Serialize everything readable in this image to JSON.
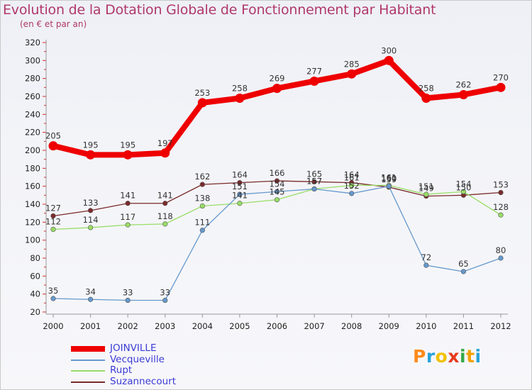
{
  "title": "Evolution de la Dotation Globale de Fonctionnement par Habitant",
  "subtitle": "(en € et par an)",
  "chart_data": {
    "type": "line",
    "title": "Evolution de la Dotation Globale de Fonctionnement par Habitant",
    "subtitle": "(en € et par an)",
    "xlabel": "",
    "ylabel": "",
    "ylim": [
      20,
      320
    ],
    "ytick_step": 20,
    "grid": false,
    "legend_position": "bottom-left",
    "categories": [
      "2000",
      "2001",
      "2002",
      "2003",
      "2004",
      "2005",
      "2006",
      "2007",
      "2008",
      "2009",
      "2010",
      "2011",
      "2012"
    ],
    "series": [
      {
        "name": "JOINVILLE",
        "color": "#ee0000",
        "values": [
          205,
          195,
          195,
          197,
          253,
          258,
          269,
          277,
          285,
          300,
          258,
          262,
          270
        ]
      },
      {
        "name": "Vecqueville",
        "color": "#6699cc",
        "values": [
          35,
          34,
          33,
          33,
          111,
          151,
          154,
          157,
          152,
          160,
          72,
          65,
          80
        ]
      },
      {
        "name": "Rupt",
        "color": "#99dd66",
        "values": [
          112,
          114,
          117,
          118,
          138,
          141,
          145,
          157,
          161,
          161,
          151,
          154,
          128
        ]
      },
      {
        "name": "Suzannecourt",
        "color": "#7a2a2a",
        "values": [
          127,
          133,
          141,
          141,
          162,
          164,
          166,
          165,
          164,
          159,
          149,
          150,
          153
        ]
      }
    ]
  },
  "logo": {
    "letters": [
      "P",
      "r",
      "o",
      "x",
      "i",
      "t",
      "i"
    ],
    "colors": [
      "#ff8a1a",
      "#27a3d9",
      "#f2c200",
      "#e63b1e",
      "#35a845",
      "#f2a200",
      "#27a3d9"
    ]
  }
}
